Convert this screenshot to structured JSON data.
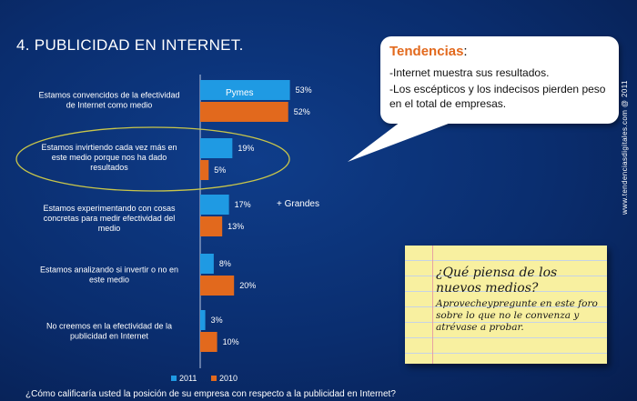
{
  "title": "4. PUBLICIDAD EN INTERNET.",
  "colors": {
    "series_2011": "#1f9ae3",
    "series_2010": "#e2691d",
    "callout_title": "#e2691d"
  },
  "chart_data": {
    "type": "bar",
    "orientation": "horizontal",
    "categories": [
      [
        "Estamos convencidos de la efectividad",
        "de Internet como medio"
      ],
      [
        "Estamos invirtiendo cada vez más en",
        "este medio porque nos ha dado",
        "resultados"
      ],
      [
        "Estamos experimentando con cosas",
        "concretas para medir efectividad del",
        "medio"
      ],
      [
        "Estamos analizando si invertir o no en",
        "este medio"
      ],
      [
        "No creemos en la efectividad de la",
        "publicidad en Internet"
      ]
    ],
    "series": [
      {
        "name": "2011",
        "values": [
          53,
          19,
          17,
          8,
          3
        ],
        "color": "#1f9ae3"
      },
      {
        "name": "2010",
        "values": [
          52,
          5,
          13,
          20,
          10
        ],
        "color": "#e2691d"
      }
    ],
    "value_suffix": "%",
    "legend_position": "bottom",
    "annotations": {
      "pymes": "Pymes",
      "grandes": "+ Grandes"
    }
  },
  "callout": {
    "title": "Tendencias",
    "title_suffix": ":",
    "lines": [
      "-Internet muestra sus resultados.",
      "-Los escépticos y los indecisos pierden peso en el total de empresas."
    ]
  },
  "sticky_note": {
    "question": "¿Qué piensa de los nuevos medios?",
    "body": "Aprovecheypregunte en este foro sobre lo que no le convenza y atrévase a probar."
  },
  "credit": "www.tendenciasdigitales.com @ 2011",
  "question": "¿Cómo calificaría usted la posición de su empresa con respecto a la publicidad en Internet?"
}
